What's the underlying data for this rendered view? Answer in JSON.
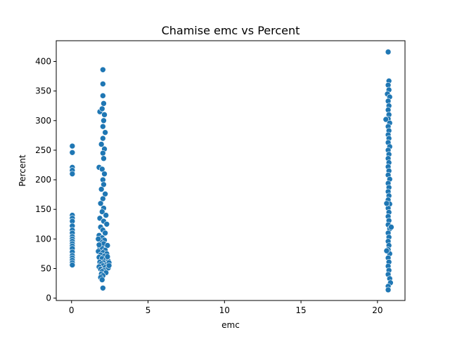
{
  "chart_data": {
    "type": "scatter",
    "title": "Chamise emc vs Percent",
    "xlabel": "emc",
    "ylabel": "Percent",
    "xlim": [
      -1.0,
      21.8
    ],
    "ylim": [
      -4,
      435
    ],
    "xticks": [
      0,
      5,
      10,
      15,
      20
    ],
    "yticks": [
      0,
      50,
      100,
      150,
      200,
      250,
      300,
      350,
      400
    ],
    "grid": false,
    "legend": "none",
    "point_color": "#1f77b4",
    "point_edge_color": "#ffffff",
    "series": [
      {
        "points": [
          [
            0.05,
            257
          ],
          [
            0.05,
            246
          ],
          [
            0.05,
            221
          ],
          [
            0.05,
            216
          ],
          [
            0.05,
            210
          ],
          [
            0.05,
            140
          ],
          [
            0.05,
            135
          ],
          [
            0.05,
            130
          ],
          [
            0.05,
            122
          ],
          [
            0.05,
            115
          ],
          [
            0.05,
            110
          ],
          [
            0.05,
            104
          ],
          [
            0.05,
            100
          ],
          [
            0.05,
            96
          ],
          [
            0.05,
            92
          ],
          [
            0.05,
            88
          ],
          [
            0.05,
            84
          ],
          [
            0.05,
            78
          ],
          [
            0.05,
            72
          ],
          [
            0.05,
            68
          ],
          [
            0.05,
            64
          ],
          [
            0.05,
            60
          ],
          [
            0.05,
            56
          ],
          [
            2.05,
            386
          ],
          [
            2.05,
            362
          ],
          [
            2.05,
            342
          ],
          [
            2.1,
            329
          ],
          [
            1.85,
            315
          ],
          [
            2.0,
            320
          ],
          [
            2.15,
            310
          ],
          [
            2.1,
            300
          ],
          [
            2.05,
            290
          ],
          [
            2.2,
            280
          ],
          [
            2.05,
            270
          ],
          [
            1.95,
            260
          ],
          [
            2.15,
            252
          ],
          [
            2.05,
            245
          ],
          [
            2.1,
            236
          ],
          [
            1.8,
            221
          ],
          [
            2.0,
            218
          ],
          [
            2.15,
            210
          ],
          [
            2.05,
            200
          ],
          [
            2.1,
            192
          ],
          [
            1.95,
            184
          ],
          [
            2.2,
            176
          ],
          [
            2.05,
            168
          ],
          [
            1.9,
            160
          ],
          [
            2.1,
            152
          ],
          [
            2.0,
            146
          ],
          [
            2.25,
            140
          ],
          [
            1.85,
            135
          ],
          [
            2.1,
            130
          ],
          [
            2.3,
            125
          ],
          [
            1.9,
            120
          ],
          [
            2.05,
            115
          ],
          [
            2.2,
            110
          ],
          [
            1.8,
            106
          ],
          [
            2.0,
            102
          ],
          [
            2.15,
            98
          ],
          [
            1.9,
            95
          ],
          [
            2.1,
            92
          ],
          [
            2.35,
            89
          ],
          [
            1.85,
            86
          ],
          [
            2.0,
            84
          ],
          [
            2.2,
            81
          ],
          [
            1.75,
            79
          ],
          [
            2.05,
            77
          ],
          [
            2.3,
            75
          ],
          [
            1.9,
            73
          ],
          [
            2.15,
            71
          ],
          [
            1.8,
            69
          ],
          [
            2.0,
            67
          ],
          [
            2.25,
            65
          ],
          [
            2.4,
            63
          ],
          [
            1.85,
            61
          ],
          [
            2.1,
            60
          ],
          [
            1.95,
            58
          ],
          [
            2.3,
            57
          ],
          [
            2.05,
            55
          ],
          [
            1.8,
            53
          ],
          [
            2.2,
            52
          ],
          [
            2.4,
            51
          ],
          [
            1.9,
            49
          ],
          [
            2.1,
            47
          ],
          [
            2.0,
            45
          ],
          [
            2.25,
            43
          ],
          [
            1.95,
            41
          ],
          [
            2.05,
            38
          ],
          [
            1.9,
            35
          ],
          [
            2.0,
            31
          ],
          [
            2.05,
            17
          ],
          [
            1.8,
            90
          ],
          [
            2.35,
            70
          ],
          [
            1.75,
            100
          ],
          [
            2.45,
            60
          ],
          [
            2.45,
            55
          ],
          [
            20.7,
            416
          ],
          [
            20.75,
            367
          ],
          [
            20.7,
            360
          ],
          [
            20.75,
            352
          ],
          [
            20.65,
            345
          ],
          [
            20.8,
            340
          ],
          [
            20.7,
            333
          ],
          [
            20.75,
            325
          ],
          [
            20.7,
            318
          ],
          [
            20.75,
            310
          ],
          [
            20.7,
            303
          ],
          [
            20.55,
            302
          ],
          [
            20.8,
            296
          ],
          [
            20.7,
            290
          ],
          [
            20.75,
            283
          ],
          [
            20.7,
            276
          ],
          [
            20.75,
            270
          ],
          [
            20.7,
            263
          ],
          [
            20.8,
            256
          ],
          [
            20.7,
            250
          ],
          [
            20.75,
            243
          ],
          [
            20.7,
            236
          ],
          [
            20.75,
            229
          ],
          [
            20.7,
            222
          ],
          [
            20.75,
            215
          ],
          [
            20.7,
            208
          ],
          [
            20.8,
            201
          ],
          [
            20.7,
            194
          ],
          [
            20.75,
            187
          ],
          [
            20.7,
            180
          ],
          [
            20.75,
            173
          ],
          [
            20.7,
            166
          ],
          [
            20.8,
            159
          ],
          [
            20.7,
            152
          ],
          [
            20.75,
            145
          ],
          [
            20.7,
            138
          ],
          [
            20.75,
            131
          ],
          [
            20.7,
            124
          ],
          [
            20.8,
            117
          ],
          [
            20.7,
            110
          ],
          [
            20.75,
            103
          ],
          [
            20.7,
            96
          ],
          [
            20.75,
            89
          ],
          [
            20.7,
            82
          ],
          [
            20.8,
            75
          ],
          [
            20.7,
            68
          ],
          [
            20.75,
            61
          ],
          [
            20.7,
            54
          ],
          [
            20.75,
            47
          ],
          [
            20.7,
            40
          ],
          [
            20.8,
            33
          ],
          [
            20.85,
            26
          ],
          [
            20.7,
            20
          ],
          [
            20.7,
            14
          ],
          [
            20.6,
            160
          ],
          [
            20.9,
            120
          ],
          [
            20.6,
            80
          ]
        ]
      }
    ]
  }
}
